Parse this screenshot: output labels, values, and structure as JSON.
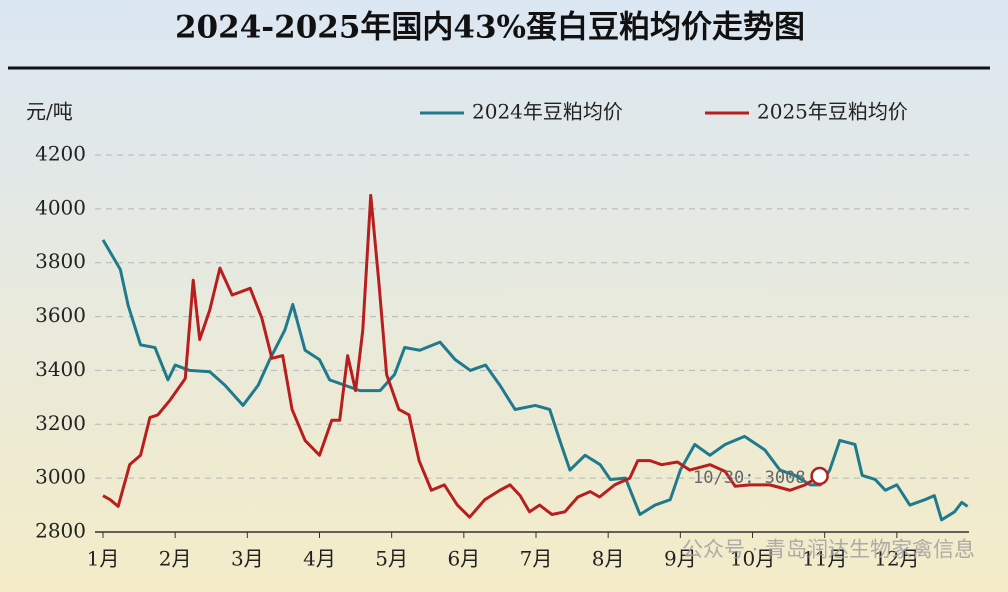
{
  "chart_data": {
    "type": "line",
    "title": "2024-2025年国内43%蛋白豆粕均价走势图",
    "y_label": "元/吨",
    "xlim": [
      1,
      13
    ],
    "xticks": [
      {
        "value": 1,
        "label": "1月"
      },
      {
        "value": 2,
        "label": "2月"
      },
      {
        "value": 3,
        "label": "3月"
      },
      {
        "value": 4,
        "label": "4月"
      },
      {
        "value": 5,
        "label": "5月"
      },
      {
        "value": 6,
        "label": "6月"
      },
      {
        "value": 7,
        "label": "7月"
      },
      {
        "value": 8,
        "label": "8月"
      },
      {
        "value": 9,
        "label": "9月"
      },
      {
        "value": 10,
        "label": "10月"
      },
      {
        "value": 11,
        "label": "11月"
      },
      {
        "value": 12,
        "label": "12月"
      }
    ],
    "ylim": [
      2800,
      4200
    ],
    "yticks": [
      2800,
      3000,
      3200,
      3400,
      3600,
      3800,
      4000,
      4200
    ],
    "grid": true,
    "legend": "top-right",
    "series": [
      {
        "name": "2024年豆粕均价",
        "color": "#1f7a8c",
        "x": [
          1.0,
          1.24,
          1.35,
          1.52,
          1.72,
          1.9,
          2.0,
          2.2,
          2.48,
          2.69,
          2.94,
          3.15,
          3.31,
          3.52,
          3.63,
          3.8,
          4.0,
          4.14,
          4.35,
          4.56,
          4.84,
          5.04,
          5.18,
          5.39,
          5.67,
          5.88,
          6.09,
          6.3,
          6.5,
          6.71,
          6.99,
          7.19,
          7.33,
          7.47,
          7.68,
          7.89,
          8.03,
          8.24,
          8.44,
          8.65,
          8.86,
          9.0,
          9.2,
          9.41,
          9.62,
          9.89,
          10.17,
          10.38,
          10.59,
          10.8,
          10.94,
          11.07,
          11.21,
          11.42,
          11.52,
          11.7,
          11.84,
          12.0,
          12.18,
          12.39,
          12.52,
          12.62,
          12.8,
          12.9,
          12.98
        ],
        "values": [
          3885,
          3775,
          3640,
          3495,
          3485,
          3365,
          3420,
          3400,
          3395,
          3345,
          3270,
          3345,
          3440,
          3550,
          3645,
          3475,
          3440,
          3365,
          3345,
          3325,
          3325,
          3385,
          3485,
          3475,
          3505,
          3440,
          3400,
          3420,
          3345,
          3255,
          3270,
          3255,
          3140,
          3030,
          3085,
          3050,
          2995,
          3000,
          2865,
          2900,
          2920,
          3030,
          3125,
          3085,
          3125,
          3155,
          3105,
          3030,
          3010,
          2975,
          2975,
          3030,
          3140,
          3125,
          3010,
          2995,
          2955,
          2975,
          2900,
          2920,
          2935,
          2845,
          2875,
          2910,
          2895
        ]
      },
      {
        "name": "2025年豆粕均价",
        "color": "#b81e1e",
        "x": [
          1.0,
          1.1,
          1.21,
          1.37,
          1.52,
          1.65,
          1.76,
          1.93,
          2.14,
          2.25,
          2.34,
          2.48,
          2.62,
          2.79,
          3.04,
          3.2,
          3.34,
          3.49,
          3.62,
          3.8,
          4.0,
          4.17,
          4.28,
          4.39,
          4.5,
          4.6,
          4.71,
          4.82,
          4.93,
          5.1,
          5.24,
          5.38,
          5.55,
          5.73,
          5.91,
          6.08,
          6.29,
          6.5,
          6.64,
          6.78,
          6.91,
          7.05,
          7.22,
          7.4,
          7.58,
          7.75,
          7.88,
          8.09,
          8.3,
          8.41,
          8.58,
          8.74,
          8.96,
          9.13,
          9.41,
          9.62,
          9.76,
          9.96,
          10.24,
          10.52,
          10.73,
          10.93
        ],
        "values": [
          2935,
          2920,
          2895,
          3050,
          3085,
          3225,
          3235,
          3290,
          3370,
          3735,
          3515,
          3625,
          3780,
          3680,
          3705,
          3595,
          3445,
          3455,
          3255,
          3140,
          3085,
          3215,
          3215,
          3455,
          3325,
          3550,
          4050,
          3735,
          3385,
          3255,
          3235,
          3065,
          2955,
          2975,
          2900,
          2855,
          2920,
          2955,
          2975,
          2935,
          2875,
          2900,
          2865,
          2875,
          2930,
          2950,
          2930,
          2975,
          3000,
          3065,
          3065,
          3050,
          3060,
          3030,
          3050,
          3025,
          2970,
          2975,
          2975,
          2955,
          2975,
          3008
        ]
      }
    ],
    "annotation": {
      "text": "10/30: 3008",
      "series": 1,
      "point": 61
    },
    "watermark": "公众号 · 青岛润达生物家禽信息"
  }
}
